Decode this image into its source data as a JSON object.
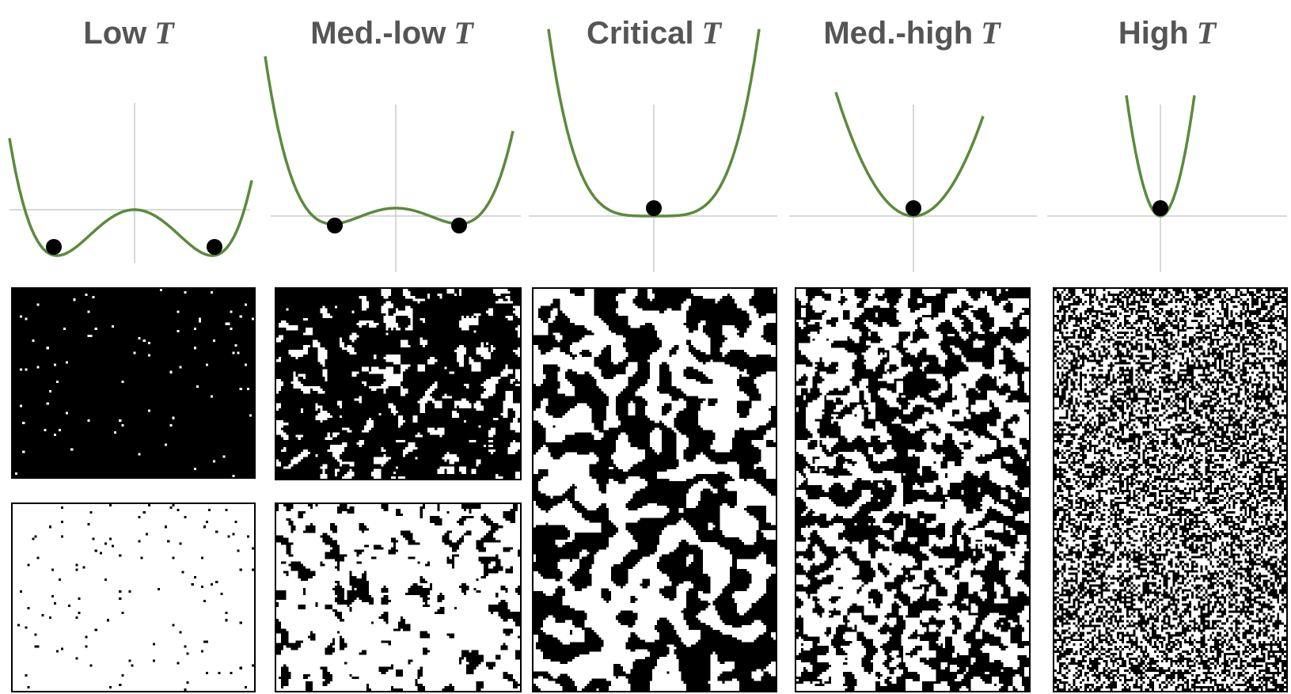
{
  "colors": {
    "curve": "#5b8a3c",
    "axis": "#cccccc",
    "ball": "#000000",
    "title": "#555555"
  },
  "t_symbol": "T",
  "panels": [
    {
      "label": "Low",
      "shape": "double-well-deep",
      "balls": 2,
      "grids": [
        {
          "white_fraction": 0.01
        },
        {
          "white_fraction": 0.985
        }
      ]
    },
    {
      "label": "Med.-low",
      "shape": "double-well-shallow",
      "balls": 2,
      "grids": [
        {
          "white_fraction": 0.18
        },
        {
          "white_fraction": 0.82
        }
      ]
    },
    {
      "label": "Critical",
      "shape": "flat-bottom",
      "balls": 1,
      "grids": [
        {
          "white_fraction": 0.5
        }
      ]
    },
    {
      "label": "Med.-high",
      "shape": "single-well",
      "balls": 1,
      "grids": [
        {
          "white_fraction": 0.5
        }
      ]
    },
    {
      "label": "High",
      "shape": "narrow-well",
      "balls": 1,
      "grids": [
        {
          "white_fraction": 0.5
        }
      ]
    }
  ]
}
